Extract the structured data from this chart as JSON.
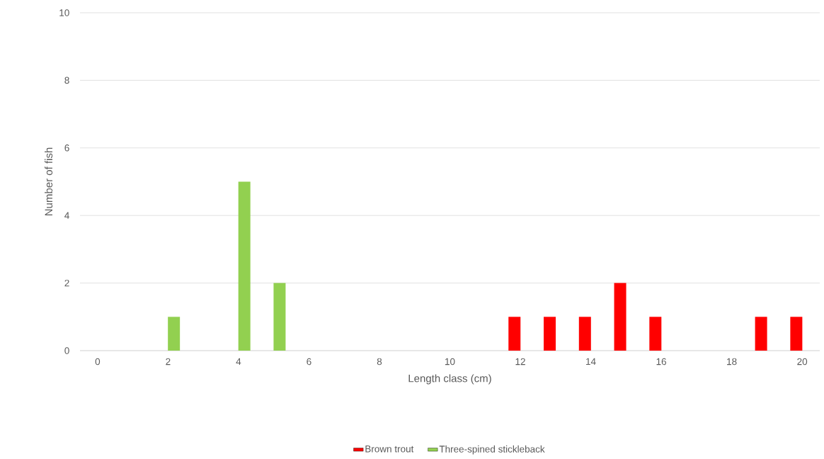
{
  "chart_data": {
    "type": "bar",
    "xlabel": "Length class (cm)",
    "ylabel": "Number of fish",
    "categories": [
      "0",
      null,
      "2",
      null,
      "4",
      null,
      "6",
      null,
      "8",
      null,
      "10",
      null,
      "12",
      null,
      "14",
      null,
      "16",
      null,
      "18",
      null,
      "20"
    ],
    "series": [
      {
        "name": "Brown trout",
        "color": "#ff0000",
        "values": [
          0,
          0,
          0,
          0,
          0,
          0,
          0,
          0,
          0,
          0,
          0,
          0,
          1,
          1,
          1,
          2,
          1,
          0,
          0,
          1,
          1
        ]
      },
      {
        "name": "Three-spined stickleback",
        "color": "#92d050",
        "values": [
          0,
          0,
          1,
          0,
          5,
          2,
          0,
          0,
          0,
          0,
          0,
          0,
          0,
          0,
          0,
          0,
          0,
          0,
          0,
          0,
          0
        ]
      }
    ],
    "ylim": [
      0,
      10
    ],
    "yticks": [
      0,
      2,
      4,
      6,
      8,
      10
    ],
    "grid": "y",
    "legend": "bottom"
  }
}
